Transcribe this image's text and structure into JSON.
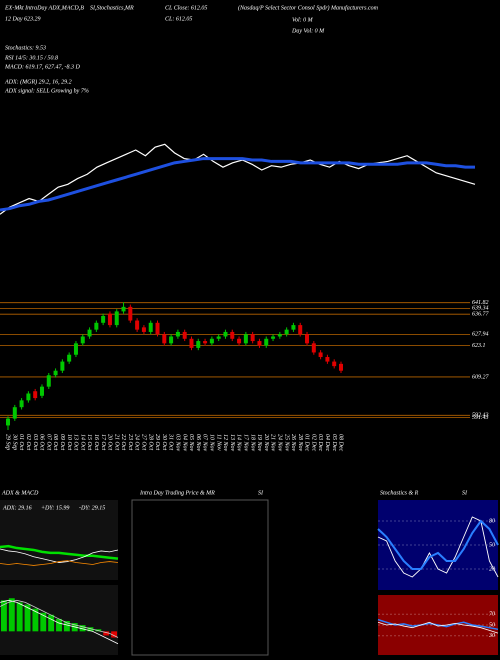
{
  "header": [
    "EX-Mkt IntraDay ADX,MACD,B",
    "SI,Stochastics,MR",
    "CL Close: 612.05",
    "(Nasdaq/P Select Sector Consol Spdr) Manufacturers.com",
    "12 Day  623.29",
    "CL: 612.05",
    "Vol: 0  M",
    "Day Vol: 0  M",
    "Stochastics: 9.53",
    "RSI 14/5: 30.15 / 50.8",
    "MACD: 619.17, 627.47, -8.3 D",
    "ADX: (MGR) 29.2, 16, 29.2",
    "ADX signal: SELL Growing by 7%"
  ],
  "chart_data": [
    {
      "type": "line",
      "ylim": [
        580,
        650
      ],
      "series": [
        {
          "color": "#ffffff",
          "linewidth": 1.2,
          "values": [
            591,
            596,
            599,
            602,
            600,
            605,
            610,
            612,
            616,
            619,
            624,
            627,
            630,
            633,
            636,
            632,
            638,
            640,
            634,
            630,
            629,
            633,
            628,
            624,
            627,
            629,
            626,
            622,
            625,
            624,
            626,
            627,
            629,
            626,
            624,
            628,
            625,
            623,
            626,
            627,
            628,
            630,
            632,
            628,
            624,
            620,
            618,
            616,
            614,
            612
          ]
        },
        {
          "color": "#1e50e0",
          "linewidth": 3,
          "values": [
            594,
            595,
            597,
            598,
            600,
            601,
            603,
            605,
            607,
            609,
            611,
            613,
            615,
            617,
            619,
            621,
            623,
            625,
            627,
            628,
            629,
            630,
            630,
            630,
            630,
            630,
            629,
            629,
            628,
            628,
            628,
            627,
            627,
            627,
            627,
            627,
            627,
            626,
            626,
            626,
            626,
            626,
            627,
            627,
            627,
            626,
            625,
            625,
            624,
            624
          ]
        }
      ]
    },
    {
      "type": "candlestick",
      "ylim": [
        586,
        643
      ],
      "up_color": "#00c800",
      "down_color": "#e00000",
      "level_color": "#b86400",
      "categories": [
        "29 Sep",
        "30 Sep",
        "01 Oct",
        "02 Oct",
        "03 Oct",
        "06 Oct",
        "07 Oct",
        "08 Oct",
        "09 Oct",
        "10 Oct",
        "13 Oct",
        "14 Oct",
        "15 Oct",
        "16 Oct",
        "17 Oct",
        "20 Oct",
        "21 Oct",
        "22 Oct",
        "23 Oct",
        "24 Oct",
        "27 Oct",
        "28 Oct",
        "29 Oct",
        "30 Oct",
        "31 Oct",
        "03 Nov",
        "04 Nov",
        "05 Nov",
        "06 Nov",
        "07 Nov",
        "10 Nov",
        "11 Nov",
        "12 Nov",
        "13 Nov",
        "14 Nov",
        "17 Nov",
        "18 Nov",
        "19 Nov",
        "20 Nov",
        "21 Nov",
        "24 Nov",
        "25 Nov",
        "26 Nov",
        "28 Nov",
        "01 Dec",
        "02 Dec",
        "03 Dec",
        "04 Dec",
        "05 Dec",
        "08 Dec"
      ],
      "open": [
        588,
        591,
        596,
        599,
        603,
        601,
        605,
        610,
        612,
        616,
        619,
        624,
        627,
        630,
        633,
        637,
        632,
        638,
        640,
        634,
        631,
        629,
        633,
        628,
        624,
        627,
        629,
        626,
        622,
        625,
        624,
        626,
        627,
        629,
        626,
        624,
        628,
        625,
        623,
        626,
        627,
        628,
        630,
        632,
        628,
        624,
        620,
        618,
        616,
        615
      ],
      "high": [
        592,
        597,
        600,
        603,
        604,
        606,
        611,
        613,
        617,
        620,
        625,
        628,
        631,
        634,
        637,
        638,
        639,
        642,
        641,
        635,
        632,
        634,
        634,
        629,
        628,
        630,
        630,
        627,
        626,
        626,
        627,
        628,
        630,
        630,
        627,
        629,
        629,
        626,
        627,
        628,
        629,
        631,
        633,
        633,
        629,
        625,
        621,
        619,
        617,
        616
      ],
      "low": [
        586,
        590,
        595,
        598,
        599,
        600,
        604,
        609,
        611,
        615,
        618,
        623,
        626,
        629,
        632,
        631,
        631,
        637,
        633,
        629,
        628,
        628,
        627,
        623,
        623,
        626,
        625,
        621,
        621,
        623,
        623,
        625,
        626,
        625,
        623,
        623,
        624,
        622,
        622,
        625,
        626,
        627,
        629,
        627,
        623,
        619,
        617,
        615,
        613,
        611
      ],
      "close": [
        591,
        596,
        599,
        602,
        600,
        605,
        610,
        612,
        616,
        619,
        624,
        627,
        630,
        633,
        636,
        632,
        638,
        640,
        634,
        630,
        629,
        633,
        628,
        624,
        627,
        629,
        626,
        622,
        625,
        624,
        626,
        627,
        629,
        626,
        624,
        628,
        625,
        623,
        626,
        627,
        628,
        630,
        632,
        628,
        624,
        620,
        618,
        616,
        614,
        612
      ],
      "levels": [
        641.82,
        639.34,
        636.77,
        627.94,
        623.1,
        609.27,
        592.43,
        591.43
      ]
    },
    {
      "type": "line",
      "title": "ADX  & MACD",
      "annotations": [
        "ADX: 29.16",
        "+DY: 15.99",
        "-DY: 29.15"
      ],
      "ylim": [
        0,
        60
      ],
      "series": [
        {
          "color": "#00e000",
          "linewidth": 2.5,
          "values": [
            32,
            33,
            31,
            30,
            29,
            27,
            26,
            26,
            25,
            24,
            23,
            23,
            22,
            21,
            20
          ]
        },
        {
          "color": "#ffffff",
          "linewidth": 0.8,
          "values": [
            30,
            28,
            27,
            25,
            22,
            20,
            18,
            16,
            17,
            19,
            22,
            26,
            28,
            27,
            29
          ]
        },
        {
          "color": "#ff8c00",
          "linewidth": 0.8,
          "values": [
            15,
            14,
            15,
            14,
            13,
            14,
            15,
            17,
            18,
            16,
            15,
            14,
            16,
            17,
            16
          ]
        }
      ]
    },
    {
      "type": "bar",
      "ylim": [
        -10,
        20
      ],
      "values": [
        15,
        16,
        14,
        13,
        11,
        9,
        8,
        6,
        5,
        4,
        3,
        2,
        1,
        -2,
        -3
      ],
      "series": [
        {
          "color": "#ffffff",
          "linewidth": 0.8,
          "values": [
            14,
            15,
            14,
            12,
            10,
            8,
            6,
            4,
            3,
            2,
            1,
            0,
            -2,
            -4,
            -6
          ]
        },
        {
          "color": "#cccccc",
          "linewidth": 0.8,
          "values": [
            12,
            14,
            15,
            14,
            12,
            10,
            8,
            6,
            4,
            3,
            2,
            1,
            0,
            -1,
            -3
          ]
        }
      ]
    },
    {
      "type": "blank",
      "title": "Intra  Day Trading Price  & MR",
      "subtitle": "SI"
    },
    {
      "type": "line",
      "title": "Stochastics & R",
      "subtitle": "SI",
      "ylim": [
        0,
        100
      ],
      "yticks": [
        20,
        50,
        80
      ],
      "series": [
        {
          "color": "#ffffff",
          "linewidth": 0.9,
          "values": [
            60,
            55,
            30,
            15,
            10,
            20,
            40,
            20,
            15,
            35,
            60,
            85,
            80,
            30,
            10
          ]
        },
        {
          "color": "#2a7fff",
          "linewidth": 2,
          "values": [
            70,
            60,
            45,
            30,
            20,
            20,
            35,
            40,
            30,
            30,
            45,
            65,
            80,
            70,
            50
          ]
        }
      ]
    },
    {
      "type": "line",
      "ylim": [
        0,
        100
      ],
      "yticks": [
        30,
        50,
        70
      ],
      "series": [
        {
          "color": "#2a7fff",
          "linewidth": 1.5,
          "values": [
            60,
            55,
            50,
            52,
            48,
            50,
            53,
            50,
            47,
            52,
            55,
            50,
            48,
            45,
            42
          ]
        },
        {
          "color": "#ffffff",
          "linewidth": 0.8,
          "values": [
            55,
            50,
            52,
            48,
            45,
            50,
            55,
            48,
            50,
            53,
            50,
            48,
            45,
            40,
            35
          ]
        }
      ]
    }
  ]
}
